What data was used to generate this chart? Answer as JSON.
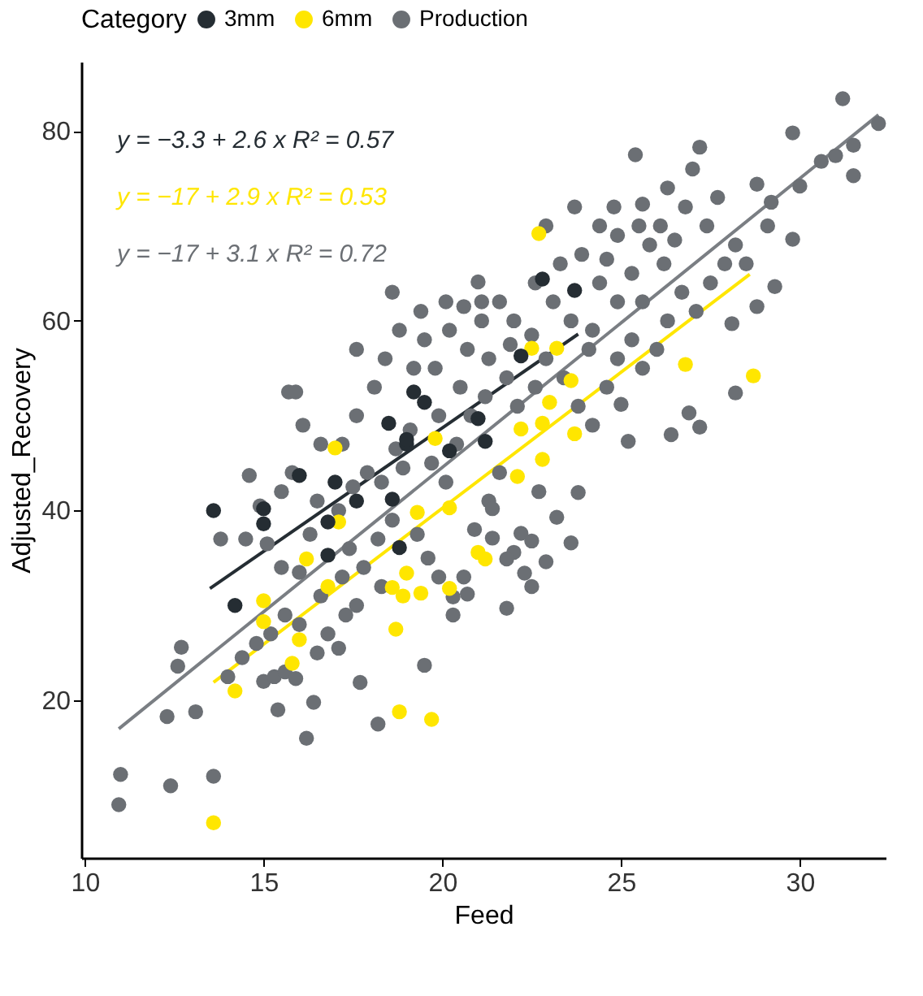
{
  "chart_data": {
    "type": "scatter",
    "xlabel": "Feed",
    "ylabel": "Adjusted_Recovery",
    "legend_title": "Category",
    "legend": "top",
    "grid": false,
    "marker": "circle",
    "xlim": [
      9.9,
      32.4
    ],
    "ylim": [
      3.4,
      87.3
    ],
    "xticks": [
      10,
      15,
      20,
      25,
      30
    ],
    "yticks": [
      20,
      40,
      60,
      80
    ],
    "annotations": [
      "y = −3.3 + 2.6 x R² = 0.57",
      "y = −17 + 2.9 x R² = 0.53",
      "y = −17 + 3.1 x R² = 0.72"
    ],
    "series": [
      {
        "name": "3mm",
        "color": "#252d33",
        "x": [
          13.6,
          14.2,
          15,
          15,
          16,
          17,
          16.8,
          17.6,
          18.6,
          18.8,
          18.5,
          19,
          20.2,
          16.8,
          19.2,
          19.5,
          19,
          22.8,
          23.7,
          22.2,
          21,
          21.2
        ],
        "values": [
          40,
          30,
          40.2,
          38.6,
          43.7,
          43,
          38.8,
          41,
          41.2,
          36.1,
          49.2,
          47,
          46.3,
          35.3,
          52.5,
          51.4,
          47.5,
          64.4,
          63.2,
          56.3,
          49.7,
          47.3
        ]
      },
      {
        "name": "6mm",
        "color": "#ffe600",
        "x": [
          13.6,
          14.2,
          18.8,
          19.7,
          16,
          15.8,
          15,
          15,
          18.7,
          16.8,
          16.2,
          17.1,
          18.6,
          18.9,
          19.4,
          20.2,
          19.3,
          20.2,
          17,
          21,
          21.2,
          19,
          22.7,
          22.5,
          23.2,
          23.6,
          23,
          22.2,
          22.8,
          23.7,
          26.8,
          28.7,
          22.8,
          22.1,
          19.8
        ],
        "values": [
          7.1,
          21,
          18.8,
          18,
          26.4,
          23.9,
          30.5,
          28.3,
          27.5,
          32,
          34.9,
          38.8,
          31.9,
          31,
          31.3,
          31.8,
          39.8,
          40.3,
          46.6,
          35.6,
          34.9,
          33.4,
          69.2,
          57.1,
          57.1,
          53.7,
          51.4,
          48.6,
          49.2,
          48.1,
          55.4,
          54.2,
          45.4,
          43.6,
          47.6
        ]
      },
      {
        "name": "Production",
        "color": "#6b6f74",
        "x": [
          11,
          10.95,
          12.4,
          13.6,
          12.3,
          13.1,
          12.6,
          12.7,
          15.4,
          16.2,
          16.4,
          18.2,
          17.7,
          19.5,
          14.6,
          14,
          14.4,
          14.8,
          15,
          15.3,
          15.6,
          15.9,
          15.2,
          15.6,
          16,
          16.5,
          16.8,
          17.1,
          17.3,
          17.6,
          17.2,
          16.6,
          16,
          15.5,
          15.1,
          14.5,
          13.8,
          14.9,
          15.5,
          15.8,
          16.5,
          17.1,
          17.4,
          17.8,
          18.3,
          18.2,
          18.6,
          18.3,
          18.9,
          19.3,
          19.6,
          19.9,
          20.3,
          20.6,
          20.9,
          21.3,
          21.6,
          20.1,
          19.7,
          20.4,
          20.8,
          21.2,
          20.5,
          19.8,
          19.2,
          19.5,
          20.2,
          20.7,
          21.3,
          21.8,
          22.1,
          22.6,
          22.9,
          23.4,
          23.8,
          24.2,
          24.6,
          24.9,
          25.3,
          25.6,
          26,
          26.3,
          24.2,
          23.6,
          23.1,
          22.6,
          22,
          21.6,
          21.1,
          20.6,
          20.1,
          19.4,
          18.8,
          18.4,
          18.1,
          17.6,
          17.2,
          16.6,
          16.1,
          15.7,
          18.6,
          17.6,
          23.3,
          23.9,
          24.4,
          24.9,
          25.3,
          25.8,
          26.2,
          26.7,
          27.1,
          27.5,
          27.9,
          27.4,
          26.8,
          26.3,
          26.1,
          25.5,
          24.9,
          24.4,
          23.7,
          22.9,
          27.7,
          28.2,
          28.5,
          29.1,
          27,
          26.5,
          25.6,
          24.6,
          24.1,
          22.5,
          21.9,
          19.9,
          19.1,
          18.7,
          17.9,
          17.5,
          16.3,
          21,
          21.1,
          24.8,
          25.6,
          25.4,
          27.2,
          29.8,
          31.2,
          32.2,
          31.5,
          31.5,
          30.6,
          31,
          29.8,
          29.3,
          28.8,
          28.1,
          28.2,
          26.9,
          27.2,
          26.4,
          25.2,
          25,
          28.8,
          29.2,
          30,
          23.8,
          23.2,
          23.6,
          22.2,
          22.5,
          22,
          21.8,
          22.9,
          22.3,
          22.5,
          21.4,
          20.7,
          21.8,
          20.3,
          22.7,
          21.4,
          15.9
        ],
        "values": [
          12.2,
          9,
          11,
          12,
          18.3,
          18.8,
          23.6,
          25.6,
          19,
          16,
          19.8,
          17.5,
          21.9,
          23.7,
          43.7,
          22.5,
          24.5,
          26,
          22,
          22.5,
          23,
          22.3,
          27,
          29,
          28,
          25,
          27,
          25.5,
          29,
          30,
          33,
          31,
          33.5,
          34,
          36.5,
          37,
          37,
          40.5,
          42,
          44,
          41,
          40,
          36,
          34,
          32,
          37,
          39,
          43,
          44.5,
          37.5,
          35,
          33,
          29,
          33,
          38,
          41,
          44,
          43,
          45,
          47,
          50,
          52,
          53,
          55,
          55,
          58,
          59,
          57,
          56,
          54,
          51,
          53,
          56,
          54,
          51,
          49,
          53,
          56,
          58,
          55,
          57,
          60,
          59,
          60,
          62,
          64,
          60,
          62,
          60,
          61.5,
          62,
          61,
          59,
          56,
          53,
          50,
          47,
          47,
          49,
          52.5,
          63,
          57,
          66,
          67,
          64,
          62,
          65,
          68,
          66,
          63,
          61,
          64,
          66,
          70,
          72,
          74,
          70,
          70,
          69,
          70,
          72,
          70,
          73,
          68,
          66,
          70,
          76,
          68.5,
          62,
          66.5,
          57,
          58.5,
          57.5,
          50,
          48.5,
          46.5,
          44,
          42.5,
          37.5,
          64.1,
          62,
          72,
          72.3,
          77.5,
          78.3,
          79.8,
          83.4,
          80.8,
          78.5,
          75.3,
          76.8,
          77.4,
          68.6,
          63.6,
          61.5,
          59.7,
          52.4,
          50.3,
          48.8,
          48,
          47.3,
          51.2,
          74.4,
          72.5,
          74.2,
          41.9,
          39.3,
          36.6,
          37.6,
          36.8,
          35.6,
          34.9,
          34.6,
          33.4,
          32,
          37.1,
          31.2,
          29.7,
          30.9,
          42,
          40.2,
          52.5
        ]
      },
      {
        "type": "line",
        "marker": "none",
        "color": "#252d33",
        "x": [
          13.5,
          23.8
        ],
        "values": [
          31.8,
          58.6
        ]
      },
      {
        "type": "line",
        "marker": "none",
        "color": "#ffe600",
        "x": [
          13.6,
          28.6
        ],
        "values": [
          21.9,
          64.9
        ]
      },
      {
        "type": "line",
        "marker": "none",
        "color": "#7a7e83",
        "x": [
          10.95,
          32.2
        ],
        "values": [
          17,
          81.7
        ]
      }
    ]
  }
}
